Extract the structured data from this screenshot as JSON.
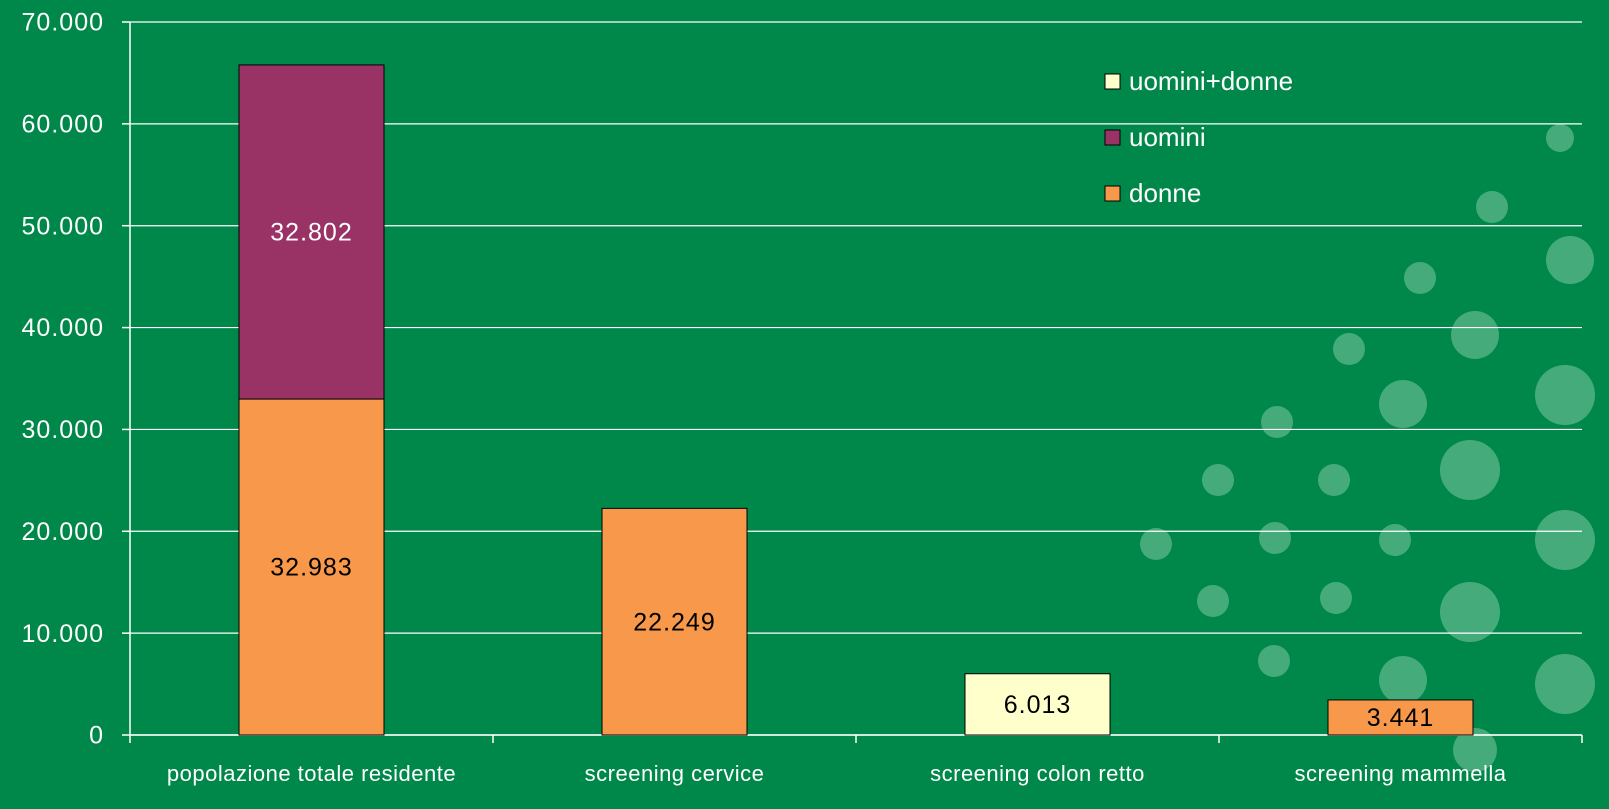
{
  "chart_data": {
    "type": "stacked_bar",
    "categories": [
      "popolazione totale residente",
      "screening cervice",
      "screening colon retto",
      "screening mammella"
    ],
    "series": [
      {
        "name": "donne",
        "color": "#f7984a",
        "values": [
          32983,
          22249,
          null,
          3441
        ],
        "value_labels": [
          "32.983",
          "22.249",
          null,
          "3.441"
        ]
      },
      {
        "name": "uomini",
        "color": "#993366",
        "values": [
          32802,
          null,
          null,
          null
        ],
        "value_labels": [
          "32.802",
          null,
          null,
          null
        ]
      },
      {
        "name": "uomini+donne",
        "color": "#ffffcc",
        "values": [
          null,
          null,
          6013,
          null
        ],
        "value_labels": [
          null,
          null,
          "6.013",
          null
        ]
      }
    ],
    "ylim": [
      0,
      70000
    ],
    "yticks": [
      0,
      {
        "value": 10000,
        "label": "10.000"
      },
      {
        "value": 20000,
        "label": "20.000"
      },
      {
        "value": 30000,
        "label": "30.000"
      },
      {
        "value": 40000,
        "label": "40.000"
      },
      {
        "value": 50000,
        "label": "50.000"
      },
      {
        "value": 60000,
        "label": "60.000"
      },
      {
        "value": 70000,
        "label": "70.000"
      }
    ],
    "grid": true,
    "legend": "top-right"
  }
}
